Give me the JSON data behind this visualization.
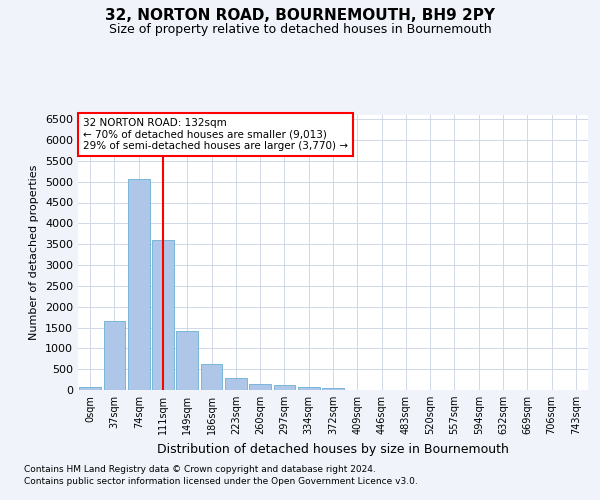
{
  "title": "32, NORTON ROAD, BOURNEMOUTH, BH9 2PY",
  "subtitle": "Size of property relative to detached houses in Bournemouth",
  "xlabel": "Distribution of detached houses by size in Bournemouth",
  "ylabel": "Number of detached properties",
  "bin_labels": [
    "0sqm",
    "37sqm",
    "74sqm",
    "111sqm",
    "149sqm",
    "186sqm",
    "223sqm",
    "260sqm",
    "297sqm",
    "334sqm",
    "372sqm",
    "409sqm",
    "446sqm",
    "483sqm",
    "520sqm",
    "557sqm",
    "594sqm",
    "632sqm",
    "669sqm",
    "706sqm",
    "743sqm"
  ],
  "bar_values": [
    75,
    1650,
    5060,
    3590,
    1410,
    620,
    295,
    150,
    110,
    75,
    55,
    0,
    0,
    0,
    0,
    0,
    0,
    0,
    0,
    0,
    0
  ],
  "bar_color": "#aec6e8",
  "bar_edgecolor": "#6aafd4",
  "ylim": [
    0,
    6600
  ],
  "yticks": [
    0,
    500,
    1000,
    1500,
    2000,
    2500,
    3000,
    3500,
    4000,
    4500,
    5000,
    5500,
    6000,
    6500
  ],
  "vline_x": 3.0,
  "vline_color": "red",
  "annotation_text": "32 NORTON ROAD: 132sqm\n← 70% of detached houses are smaller (9,013)\n29% of semi-detached houses are larger (3,770) →",
  "annotation_box_color": "red",
  "footnote1": "Contains HM Land Registry data © Crown copyright and database right 2024.",
  "footnote2": "Contains public sector information licensed under the Open Government Licence v3.0.",
  "bg_color": "#f0f4fa",
  "plot_bg_color": "#ffffff",
  "grid_color": "#d0d8e8"
}
